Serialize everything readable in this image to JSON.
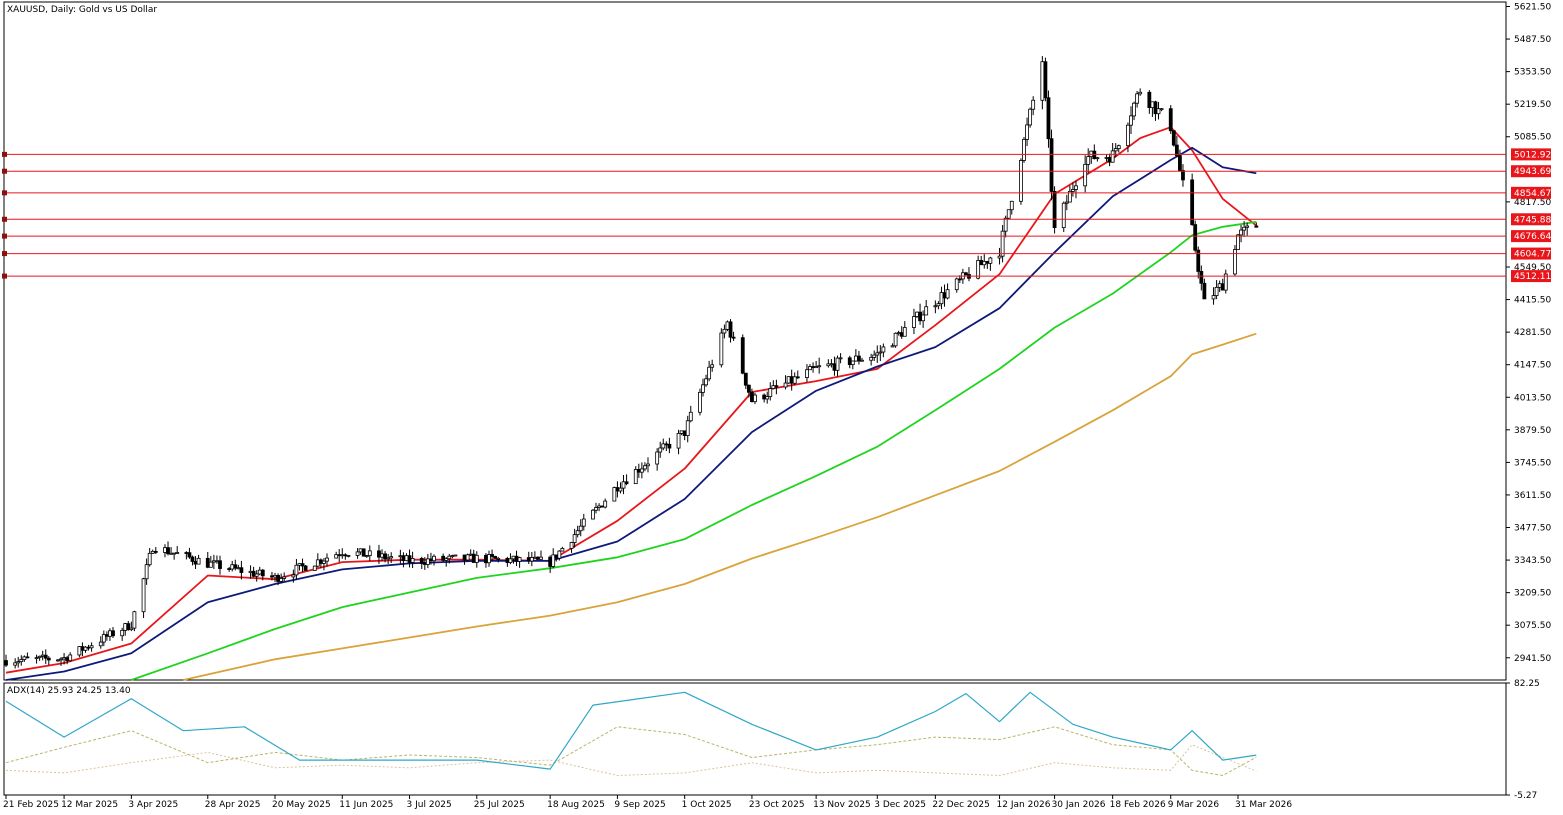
{
  "header": {
    "main_title": "XAUUSD, Daily:  Gold vs US Dollar",
    "indicator_title": "ADX(14) 25.93 24.25 13.40"
  },
  "colors": {
    "background": "#ffffff",
    "frame": "#000000",
    "candle": "#000000",
    "ma_fast": "#e8161b",
    "ma_mid": "#0d1a7a",
    "ma_slow": "#1fd41f",
    "ma_long": "#d9a33a",
    "level_line": "#e8161b",
    "level_label_bg": "#e8161b",
    "adx_main": "#2fa7c8",
    "adx_plus_di": "#b9b46a",
    "adx_minus_di": "#d9c39a"
  },
  "chart_data": {
    "type": "candlestick",
    "symbol": "XAUUSD",
    "timeframe": "Daily",
    "title": "XAUUSD, Daily:  Gold vs US Dollar",
    "price_axis": {
      "ylim": [
        2850,
        5640
      ],
      "ticks": [
        "5621.50",
        "5487.50",
        "5353.50",
        "5219.50",
        "5085.50",
        "4817.50",
        "4549.50",
        "4415.50",
        "4281.50",
        "4147.50",
        "4013.50",
        "3879.50",
        "3745.50",
        "3611.50",
        "3477.50",
        "3343.50",
        "3209.50",
        "3075.50",
        "2941.50"
      ]
    },
    "date_axis": {
      "labels": [
        "21 Feb 2025",
        "12 Mar 2025",
        "3 Apr 2025",
        "28 Apr 2025",
        "20 May 2025",
        "11 Jun 2025",
        "3 Jul 2025",
        "25 Jul 2025",
        "18 Aug 2025",
        "9 Sep 2025",
        "1 Oct 2025",
        "23 Oct 2025",
        "13 Nov 2025",
        "3 Dec 2025",
        "22 Dec 2025",
        "12 Jan 2026",
        "30 Jan 2026",
        "18 Feb 2026",
        "9 Mar 2026",
        "31 Mar 2026"
      ]
    },
    "price_anchors": [
      [
        "21 Feb 2025",
        2930
      ],
      [
        "12 Mar 2025",
        2940
      ],
      [
        "3 Apr 2025",
        3080
      ],
      [
        "10 Apr 2025",
        3400
      ],
      [
        "28 Apr 2025",
        3330
      ],
      [
        "20 May 2025",
        3270
      ],
      [
        "11 Jun 2025",
        3380
      ],
      [
        "3 Jul 2025",
        3340
      ],
      [
        "25 Jul 2025",
        3350
      ],
      [
        "18 Aug 2025",
        3335
      ],
      [
        "9 Sep 2025",
        3650
      ],
      [
        "1 Oct 2025",
        3870
      ],
      [
        "15 Oct 2025",
        4320
      ],
      [
        "23 Oct 2025",
        4000
      ],
      [
        "13 Nov 2025",
        4130
      ],
      [
        "3 Dec 2025",
        4190
      ],
      [
        "22 Dec 2025",
        4410
      ],
      [
        "12 Jan 2026",
        4620
      ],
      [
        "26 Jan 2026",
        5400
      ],
      [
        "30 Jan 2026",
        4700
      ],
      [
        "9 Feb 2026",
        5000
      ],
      [
        "18 Feb 2026",
        5010
      ],
      [
        "27 Feb 2026",
        5280
      ],
      [
        "9 Mar 2026",
        5130
      ],
      [
        "16 Mar 2026",
        4700
      ],
      [
        "20 Mar 2026",
        4400
      ],
      [
        "26 Mar 2026",
        4480
      ],
      [
        "31 Mar 2026",
        4680
      ],
      [
        "6 Apr 2026",
        4720
      ]
    ],
    "moving_averages": [
      {
        "color": "#e8161b",
        "points": [
          [
            "21 Feb 2025",
            2880
          ],
          [
            "12 Mar 2025",
            2920
          ],
          [
            "3 Apr 2025",
            3000
          ],
          [
            "28 Apr 2025",
            3280
          ],
          [
            "20 May 2025",
            3265
          ],
          [
            "11 Jun 2025",
            3335
          ],
          [
            "3 Jul 2025",
            3345
          ],
          [
            "25 Jul 2025",
            3345
          ],
          [
            "18 Aug 2025",
            3340
          ],
          [
            "9 Sep 2025",
            3505
          ],
          [
            "1 Oct 2025",
            3720
          ],
          [
            "23 Oct 2025",
            4035
          ],
          [
            "13 Nov 2025",
            4080
          ],
          [
            "3 Dec 2025",
            4130
          ],
          [
            "22 Dec 2025",
            4310
          ],
          [
            "12 Jan 2026",
            4520
          ],
          [
            "30 Jan 2026",
            4850
          ],
          [
            "18 Feb 2026",
            4995
          ],
          [
            "27 Feb 2026",
            5080
          ],
          [
            "9 Mar 2026",
            5125
          ],
          [
            "16 Mar 2026",
            5030
          ],
          [
            "26 Mar 2026",
            4830
          ],
          [
            "6 Apr 2026",
            4720
          ]
        ]
      },
      {
        "color": "#0d1a7a",
        "points": [
          [
            "21 Feb 2025",
            2850
          ],
          [
            "12 Mar 2025",
            2885
          ],
          [
            "3 Apr 2025",
            2960
          ],
          [
            "28 Apr 2025",
            3170
          ],
          [
            "20 May 2025",
            3245
          ],
          [
            "11 Jun 2025",
            3305
          ],
          [
            "3 Jul 2025",
            3330
          ],
          [
            "25 Jul 2025",
            3340
          ],
          [
            "18 Aug 2025",
            3340
          ],
          [
            "9 Sep 2025",
            3420
          ],
          [
            "1 Oct 2025",
            3595
          ],
          [
            "23 Oct 2025",
            3870
          ],
          [
            "13 Nov 2025",
            4040
          ],
          [
            "3 Dec 2025",
            4140
          ],
          [
            "22 Dec 2025",
            4220
          ],
          [
            "12 Jan 2026",
            4380
          ],
          [
            "30 Jan 2026",
            4610
          ],
          [
            "18 Feb 2026",
            4840
          ],
          [
            "9 Mar 2026",
            4990
          ],
          [
            "16 Mar 2026",
            5040
          ],
          [
            "26 Mar 2026",
            4960
          ],
          [
            "6 Apr 2026",
            4935
          ]
        ]
      },
      {
        "color": "#1fd41f",
        "points": [
          [
            "3 Apr 2025",
            2850
          ],
          [
            "28 Apr 2025",
            2960
          ],
          [
            "20 May 2025",
            3060
          ],
          [
            "11 Jun 2025",
            3150
          ],
          [
            "3 Jul 2025",
            3210
          ],
          [
            "25 Jul 2025",
            3270
          ],
          [
            "18 Aug 2025",
            3310
          ],
          [
            "9 Sep 2025",
            3355
          ],
          [
            "1 Oct 2025",
            3430
          ],
          [
            "23 Oct 2025",
            3570
          ],
          [
            "13 Nov 2025",
            3690
          ],
          [
            "3 Dec 2025",
            3810
          ],
          [
            "22 Dec 2025",
            3960
          ],
          [
            "12 Jan 2026",
            4130
          ],
          [
            "30 Jan 2026",
            4300
          ],
          [
            "18 Feb 2026",
            4440
          ],
          [
            "9 Mar 2026",
            4610
          ],
          [
            "16 Mar 2026",
            4680
          ],
          [
            "26 Mar 2026",
            4715
          ],
          [
            "6 Apr 2026",
            4735
          ]
        ]
      },
      {
        "color": "#d9a33a",
        "points": [
          [
            "20 Apr 2025",
            2850
          ],
          [
            "20 May 2025",
            2935
          ],
          [
            "11 Jun 2025",
            2980
          ],
          [
            "3 Jul 2025",
            3025
          ],
          [
            "25 Jul 2025",
            3070
          ],
          [
            "18 Aug 2025",
            3115
          ],
          [
            "9 Sep 2025",
            3170
          ],
          [
            "1 Oct 2025",
            3245
          ],
          [
            "23 Oct 2025",
            3350
          ],
          [
            "13 Nov 2025",
            3435
          ],
          [
            "3 Dec 2025",
            3520
          ],
          [
            "22 Dec 2025",
            3610
          ],
          [
            "12 Jan 2026",
            3710
          ],
          [
            "30 Jan 2026",
            3830
          ],
          [
            "18 Feb 2026",
            3960
          ],
          [
            "9 Mar 2026",
            4100
          ],
          [
            "16 Mar 2026",
            4190
          ],
          [
            "26 Mar 2026",
            4230
          ],
          [
            "6 Apr 2026",
            4275
          ]
        ]
      }
    ],
    "levels": [
      {
        "value": 5012.92,
        "label": "5012.92"
      },
      {
        "value": 4943.69,
        "label": "4943.69"
      },
      {
        "value": 4854.67,
        "label": "4854.67"
      },
      {
        "value": 4745.88,
        "label": "4745.88"
      },
      {
        "value": 4676.64,
        "label": "4676.64"
      },
      {
        "value": 4604.77,
        "label": "4604.77"
      },
      {
        "value": 4512.11,
        "label": "4512.11"
      }
    ],
    "indicator": {
      "name": "ADX(14)",
      "values": [
        25.93,
        24.25,
        13.4
      ],
      "ylim": [
        -5.27,
        82.25
      ],
      "ticks": [
        "82.25",
        "-5.27"
      ],
      "adx_points": [
        [
          "21 Feb 2025",
          68
        ],
        [
          "12 Mar 2025",
          40
        ],
        [
          "3 Apr 2025",
          70
        ],
        [
          "20 Apr 2025",
          45
        ],
        [
          "10 May 2025",
          48
        ],
        [
          "28 May 2025",
          22
        ],
        [
          "20 Jun 2025",
          22
        ],
        [
          "25 Jul 2025",
          22
        ],
        [
          "18 Aug 2025",
          15
        ],
        [
          "1 Sep 2025",
          65
        ],
        [
          "1 Oct 2025",
          75
        ],
        [
          "23 Oct 2025",
          50
        ],
        [
          "13 Nov 2025",
          30
        ],
        [
          "3 Dec 2025",
          40
        ],
        [
          "22 Dec 2025",
          60
        ],
        [
          "1 Jan 2026",
          74
        ],
        [
          "12 Jan 2026",
          52
        ],
        [
          "22 Jan 2026",
          75
        ],
        [
          "5 Feb 2026",
          50
        ],
        [
          "18 Feb 2026",
          40
        ],
        [
          "9 Mar 2026",
          30
        ],
        [
          "16 Mar 2026",
          45
        ],
        [
          "26 Mar 2026",
          22
        ],
        [
          "6 Apr 2026",
          25.93
        ]
      ],
      "plus_di_points": [
        [
          "21 Feb 2025",
          20
        ],
        [
          "12 Mar 2025",
          32
        ],
        [
          "3 Apr 2025",
          45
        ],
        [
          "28 Apr 2025",
          20
        ],
        [
          "20 May 2025",
          28
        ],
        [
          "11 Jun 2025",
          22
        ],
        [
          "3 Jul 2025",
          26
        ],
        [
          "25 Jul 2025",
          24
        ],
        [
          "18 Aug 2025",
          18
        ],
        [
          "9 Sep 2025",
          48
        ],
        [
          "1 Oct 2025",
          42
        ],
        [
          "23 Oct 2025",
          24
        ],
        [
          "13 Nov 2025",
          30
        ],
        [
          "3 Dec 2025",
          34
        ],
        [
          "22 Dec 2025",
          40
        ],
        [
          "12 Jan 2026",
          38
        ],
        [
          "30 Jan 2026",
          48
        ],
        [
          "18 Feb 2026",
          34
        ],
        [
          "9 Mar 2026",
          30
        ],
        [
          "16 Mar 2026",
          14
        ],
        [
          "26 Mar 2026",
          10
        ],
        [
          "6 Apr 2026",
          24.25
        ]
      ],
      "minus_di_points": [
        [
          "21 Feb 2025",
          14
        ],
        [
          "12 Mar 2025",
          12
        ],
        [
          "3 Apr 2025",
          20
        ],
        [
          "28 Apr 2025",
          28
        ],
        [
          "20 May 2025",
          16
        ],
        [
          "11 Jun 2025",
          18
        ],
        [
          "3 Jul 2025",
          16
        ],
        [
          "25 Jul 2025",
          20
        ],
        [
          "18 Aug 2025",
          22
        ],
        [
          "9 Sep 2025",
          10
        ],
        [
          "1 Oct 2025",
          12
        ],
        [
          "23 Oct 2025",
          20
        ],
        [
          "13 Nov 2025",
          12
        ],
        [
          "3 Dec 2025",
          14
        ],
        [
          "22 Dec 2025",
          12
        ],
        [
          "12 Jan 2026",
          10
        ],
        [
          "30 Jan 2026",
          20
        ],
        [
          "18 Feb 2026",
          16
        ],
        [
          "9 Mar 2026",
          14
        ],
        [
          "16 Mar 2026",
          34
        ],
        [
          "26 Mar 2026",
          24
        ],
        [
          "6 Apr 2026",
          13.4
        ]
      ]
    }
  }
}
